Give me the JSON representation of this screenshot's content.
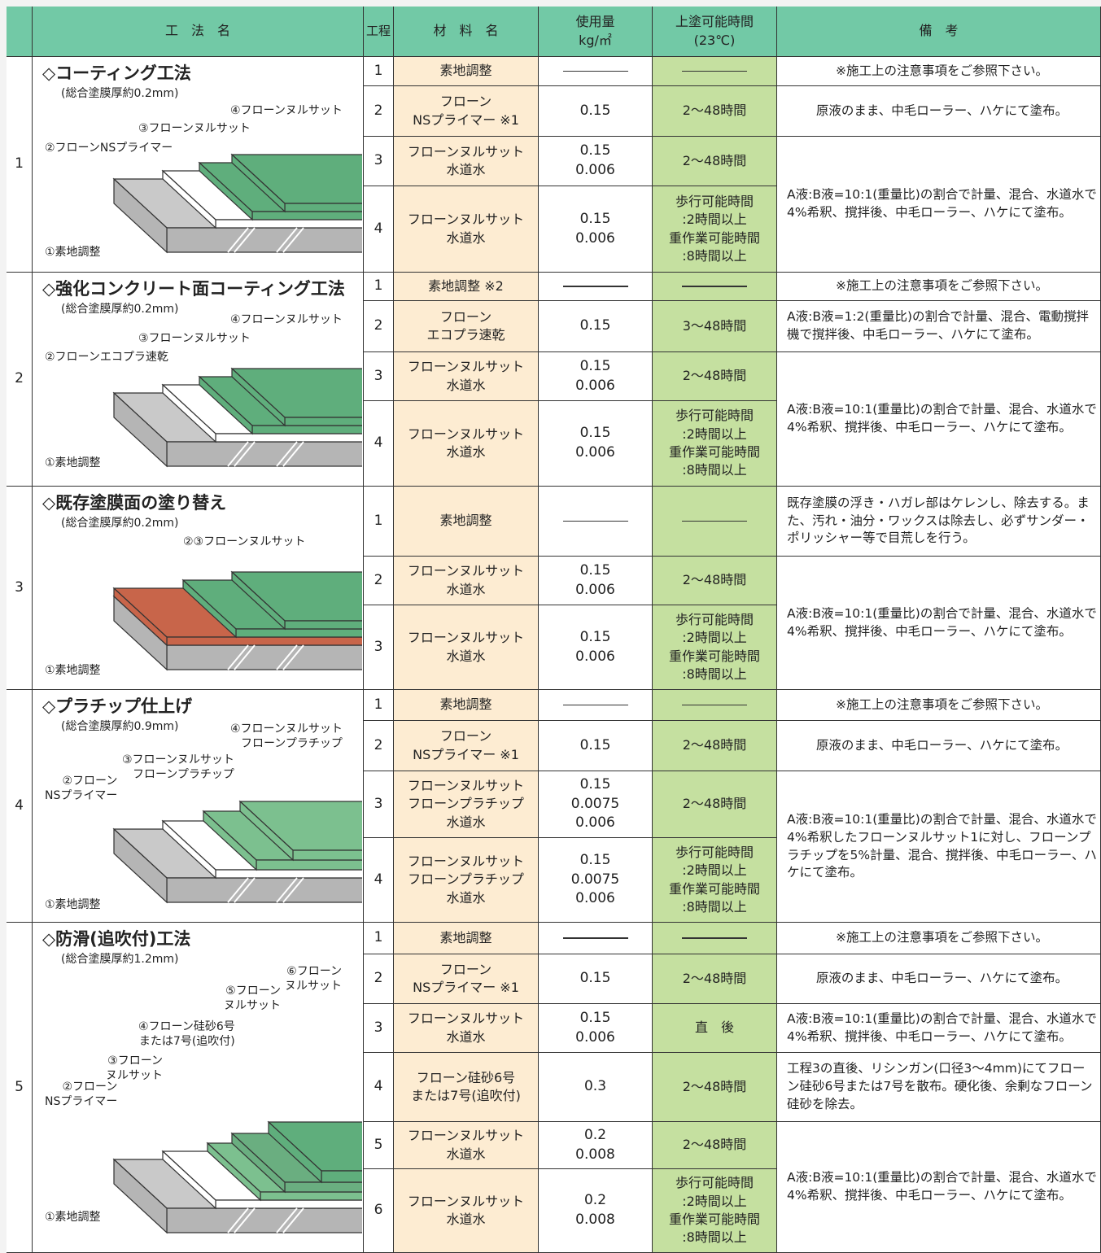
{
  "header": [
    "工　法　名",
    "工程",
    "材　料　名",
    "使用量\nkg/㎡",
    "上塗可能時間\n(23℃)",
    "備　考"
  ],
  "sections": [
    {
      "number": "1",
      "title": "◇コーティング工法",
      "thickness": "(総合塗膜厚約0.2mm)",
      "labels": [
        "④フローンヌルサット",
        "③フローンヌルサット",
        "②フローンNSプライマー",
        "①素地調整"
      ],
      "steps": [
        {
          "step": "1",
          "material": "素地調整",
          "usage": null,
          "time": null,
          "note": "※施工上の注意事項をご参照下さい。"
        },
        {
          "step": "2",
          "material": "フローン\nNSプライマー ※1",
          "usage": "0.15",
          "time": "2〜48時間",
          "note": "原液のまま、中毛ローラー、ハケにて塗布。"
        },
        {
          "step": "3",
          "material": "フローンヌルサット\n水道水",
          "usage": "0.15\n0.006",
          "time": "2〜48時間",
          "note": "A液:B液=10:1(重量比)の割合で計量、混合、水道水で4%希釈、撹拌後、中毛ローラー、ハケにて塗布。"
        },
        {
          "step": "4",
          "material": "フローンヌルサット\n水道水",
          "usage": "0.15\n0.006",
          "time": "歩行可能時間\n:2時間以上\n重作業可能時間\n:8時間以上"
        }
      ]
    },
    {
      "number": "2",
      "title": "◇強化コンクリート面コーティング工法",
      "thickness": "(総合塗膜厚約0.2mm)",
      "labels": [
        "④フローンヌルサット",
        "③フローンヌルサット",
        "②フローンエコプラ速乾",
        "①素地調整"
      ],
      "steps": [
        {
          "step": "1",
          "material": "素地調整 ※2",
          "usage": null,
          "time": null,
          "note": "※施工上の注意事項をご参照下さい。"
        },
        {
          "step": "2",
          "material": "フローン\nエコプラ速乾",
          "usage": "0.15",
          "time": "3〜48時間",
          "note": "A液:B液=1:2(重量比)の割合で計量、混合、電動撹拌機で撹拌後、中毛ローラー、ハケにて塗布。"
        },
        {
          "step": "3",
          "material": "フローンヌルサット\n水道水",
          "usage": "0.15\n0.006",
          "time": "2〜48時間",
          "note": "A液:B液=10:1(重量比)の割合で計量、混合、水道水で4%希釈、撹拌後、中毛ローラー、ハケにて塗布。"
        },
        {
          "step": "4",
          "material": "フローンヌルサット\n水道水",
          "usage": "0.15\n0.006",
          "time": "歩行可能時間\n:2時間以上\n重作業可能時間\n:8時間以上"
        }
      ]
    },
    {
      "number": "3",
      "title": "◇既存塗膜面の塗り替え",
      "thickness": "(総合塗膜厚約0.2mm)",
      "labels": [
        "②③フローンヌルサット",
        "①素地調整"
      ],
      "steps": [
        {
          "step": "1",
          "material": "素地調整",
          "usage": null,
          "time": null,
          "note": "既存塗膜の浮き・ハガレ部はケレンし、除去する。また、汚れ・油分・ワックスは除去し、必ずサンダー・ポリッシャー等で目荒しを行う。"
        },
        {
          "step": "2",
          "material": "フローンヌルサット\n水道水",
          "usage": "0.15\n0.006",
          "time": "2〜48時間",
          "note": "A液:B液=10:1(重量比)の割合で計量、混合、水道水で4%希釈、撹拌後、中毛ローラー、ハケにて塗布。"
        },
        {
          "step": "3",
          "material": "フローンヌルサット\n水道水",
          "usage": "0.15\n0.006",
          "time": "歩行可能時間\n:2時間以上\n重作業可能時間\n:8時間以上"
        }
      ]
    },
    {
      "number": "4",
      "title": "◇プラチップ仕上げ",
      "thickness": "(総合塗膜厚約0.9mm)",
      "labels": [
        "④フローンヌルサット\nフローンプラチップ",
        "③フローンヌルサット\nフローンプラチップ",
        "②フローン\nNSプライマー",
        "①素地調整"
      ],
      "steps": [
        {
          "step": "1",
          "material": "素地調整",
          "usage": null,
          "time": null,
          "note": "※施工上の注意事項をご参照下さい。"
        },
        {
          "step": "2",
          "material": "フローン\nNSプライマー ※1",
          "usage": "0.15",
          "time": "2〜48時間",
          "note": "原液のまま、中毛ローラー、ハケにて塗布。"
        },
        {
          "step": "3",
          "material": "フローンヌルサット\nフローンプラチップ\n水道水",
          "usage": "0.15\n0.0075\n0.006",
          "time": "2〜48時間",
          "note": "A液:B液=10:1(重量比)の割合で計量、混合、水道水で4%希釈したフローンヌルサット1に対し、フローンプラチップを5%計量、混合、撹拌後、中毛ローラー、ハケにて塗布。"
        },
        {
          "step": "4",
          "material": "フローンヌルサット\nフローンプラチップ\n水道水",
          "usage": "0.15\n0.0075\n0.006",
          "time": "歩行可能時間\n:2時間以上\n重作業可能時間\n:8時間以上"
        }
      ]
    },
    {
      "number": "5",
      "title": "◇防滑(追吹付)工法",
      "thickness": "(総合塗膜厚約1.2mm)",
      "labels": [
        "⑥フローン\nヌルサット",
        "⑤フローン\nヌルサット",
        "④フローン硅砂6号\nまたは7号(追吹付)",
        "③フローン\nヌルサット",
        "②フローン\nNSプライマー",
        "①素地調整"
      ],
      "steps": [
        {
          "step": "1",
          "material": "素地調整",
          "usage": null,
          "time": null,
          "note": "※施工上の注意事項をご参照下さい。"
        },
        {
          "step": "2",
          "material": "フローン\nNSプライマー ※1",
          "usage": "0.15",
          "time": "2〜48時間",
          "note": "原液のまま、中毛ローラー、ハケにて塗布。"
        },
        {
          "step": "3",
          "material": "フローンヌルサット\n水道水",
          "usage": "0.15\n0.006",
          "time": "直　後",
          "note": "A液:B液=10:1(重量比)の割合で計量、混合、水道水で4%希釈、撹拌後、中毛ローラー、ハケにて塗布。"
        },
        {
          "step": "4",
          "material": "フローン硅砂6号\nまたは7号(追吹付)",
          "usage": "0.3",
          "time": "2〜48時間",
          "note": "工程3の直後、リシンガン(口径3〜4mm)にてフローン硅砂6号または7号を散布。硬化後、余剰なフローン硅砂を除去。"
        },
        {
          "step": "5",
          "material": "フローンヌルサット\n水道水",
          "usage": "0.2\n0.008",
          "time": "2〜48時間",
          "note": "A液:B液=10:1(重量比)の割合で計量、混合、水道水で4%希釈、撹拌後、中毛ローラー、ハケにて塗布。"
        },
        {
          "step": "6",
          "material": "フローンヌルサット\n水道水",
          "usage": "0.2\n0.008",
          "time": "歩行可能時間\n:2時間以上\n重作業可能時間\n:8時間以上"
        }
      ]
    }
  ]
}
